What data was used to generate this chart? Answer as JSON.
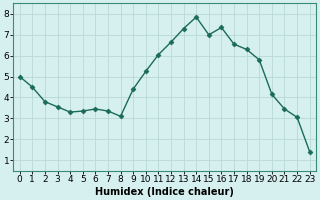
{
  "x": [
    0,
    1,
    2,
    3,
    4,
    5,
    6,
    7,
    8,
    9,
    10,
    11,
    12,
    13,
    14,
    15,
    16,
    17,
    18,
    19,
    20,
    21,
    22,
    23
  ],
  "y": [
    5.0,
    4.5,
    3.8,
    3.55,
    3.3,
    3.35,
    3.45,
    3.35,
    3.1,
    4.4,
    5.25,
    6.05,
    6.65,
    7.3,
    7.85,
    7.0,
    7.35,
    6.55,
    6.3,
    5.8,
    4.15,
    3.45,
    3.05,
    1.4
  ],
  "line_color": "#1a6b5a",
  "marker": "D",
  "marker_size": 2.5,
  "line_width": 1.0,
  "bg_color": "#d6f0ef",
  "grid_color": "#b8d8d5",
  "xlabel": "Humidex (Indice chaleur)",
  "xlabel_fontsize": 7,
  "tick_fontsize": 6.5,
  "xlim": [
    -0.5,
    23.5
  ],
  "ylim": [
    0.5,
    8.5
  ],
  "yticks": [
    1,
    2,
    3,
    4,
    5,
    6,
    7,
    8
  ],
  "xticks": [
    0,
    1,
    2,
    3,
    4,
    5,
    6,
    7,
    8,
    9,
    10,
    11,
    12,
    13,
    14,
    15,
    16,
    17,
    18,
    19,
    20,
    21,
    22,
    23
  ]
}
